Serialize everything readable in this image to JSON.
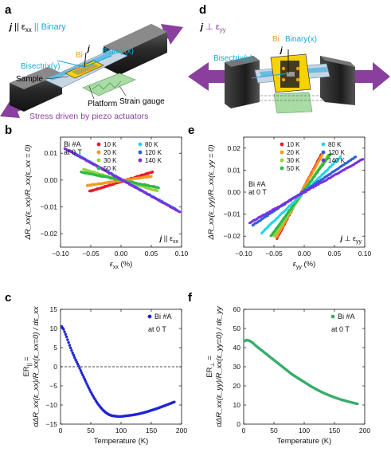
{
  "panel_letters": [
    "a",
    "d",
    "b",
    "e",
    "c",
    "f"
  ],
  "schematic_a": {
    "header_j": "j",
    "header_rest": " || ε",
    "header_sub": "xx",
    "header_tail": " || Binary",
    "bi": "Bi",
    "j": "j",
    "binary_x": "Binary(x)",
    "bisectrix_y": "Bisectrix(y)",
    "sample": "Sample",
    "platform": "Platform",
    "strain_gauge": "Strain gauge",
    "stress": "Stress driven by piezo actuators"
  },
  "schematic_d": {
    "header_j": "j",
    "header_rest": " ⊥ ε",
    "header_sub": "yy",
    "bi": "Bi",
    "binary_x": "Binary(x)",
    "j": "j",
    "bisectrix_y": "Bisectrix(y)"
  },
  "colors": {
    "T10": "#e8192c",
    "T20": "#f39a1e",
    "T30": "#8fd63a",
    "T50": "#2fb74a",
    "T80": "#26d6e3",
    "T120": "#2b5fd9",
    "T140": "#7b2fe0",
    "panel_c": "#1f25d6",
    "panel_f": "#3aad6c",
    "purple": "#8a3f9e",
    "cyan": "#1aa7d8"
  },
  "chart_data": [
    {
      "id": "b",
      "type": "scatter",
      "xlabel_var": "ε",
      "xlabel_sub": "xx",
      "xlabel_unit": " (%)",
      "ylabel": "ΔR_xx(ε_xx)/R_xx(ε_xx = 0)",
      "xlim": [
        -0.1,
        0.1
      ],
      "ylim": [
        -0.025,
        0.016
      ],
      "xticks": [
        "−0.10",
        "−0.05",
        "0.00",
        "0.05",
        "0.10"
      ],
      "yticks": [
        "−0.02",
        "−0.01",
        "0.00",
        "0.01"
      ],
      "sample_label": [
        "Bi #A",
        "at 0 T"
      ],
      "corner_label": {
        "j": "j",
        "rel": " || ε",
        "sub": "xx"
      },
      "legend_cols": [
        [
          "10 K",
          "20 K",
          "30 K",
          "50 K"
        ],
        [
          "80 K",
          "120 K",
          "140 K"
        ]
      ],
      "series": [
        {
          "name": "10 K",
          "color_key": "T10",
          "x": [
            -0.052,
            0.052
          ],
          "y": [
            -0.0042,
            0.003
          ]
        },
        {
          "name": "20 K",
          "color_key": "T20",
          "x": [
            -0.056,
            0.05
          ],
          "y": [
            -0.002,
            0.0014
          ]
        },
        {
          "name": "30 K",
          "color_key": "T30",
          "x": [
            -0.062,
            0.06
          ],
          "y": [
            0.004,
            -0.004
          ]
        },
        {
          "name": "50 K",
          "color_key": "T50",
          "x": [
            -0.066,
            0.062
          ],
          "y": [
            0.003,
            -0.0028
          ]
        },
        {
          "name": "80 K",
          "color_key": "T80",
          "x": [
            -0.085,
            0.09
          ],
          "y": [
            0.011,
            -0.0108
          ]
        },
        {
          "name": "120 K",
          "color_key": "T120",
          "x": [
            -0.088,
            0.093
          ],
          "y": [
            0.0112,
            -0.0113
          ]
        },
        {
          "name": "140 K",
          "color_key": "T140",
          "x": [
            -0.093,
            0.097
          ],
          "y": [
            0.0118,
            -0.0118
          ]
        }
      ]
    },
    {
      "id": "e",
      "type": "scatter",
      "xlabel_var": "ε",
      "xlabel_sub": "yy",
      "xlabel_unit": " (%)",
      "ylabel": "ΔR_xx(ε_yy)/R_xx(ε_yy = 0)",
      "xlim": [
        -0.1,
        0.1
      ],
      "ylim": [
        -0.025,
        0.025
      ],
      "xticks": [
        "−0.10",
        "−0.05",
        "0.00",
        "0.05",
        "0.10"
      ],
      "yticks": [
        "−0.02",
        "−0.01",
        "0.00",
        "0.01",
        "0.02"
      ],
      "sample_label": [
        "Bi #A",
        "at 0 T"
      ],
      "corner_label": {
        "j": "j",
        "rel": " ⊥ ε",
        "sub": "yy"
      },
      "legend_cols": [
        [
          "10 K",
          "20 K",
          "30 K",
          "50 K"
        ],
        [
          "80 K",
          "120 K",
          "140 K"
        ]
      ],
      "series": [
        {
          "name": "10 K",
          "color_key": "T10",
          "x": [
            -0.045,
            0.028
          ],
          "y": [
            -0.021,
            0.017
          ]
        },
        {
          "name": "20 K",
          "color_key": "T20",
          "x": [
            -0.046,
            0.03
          ],
          "y": [
            -0.0205,
            0.017
          ]
        },
        {
          "name": "30 K",
          "color_key": "T30",
          "x": [
            -0.05,
            0.04
          ],
          "y": [
            -0.02,
            0.017
          ]
        },
        {
          "name": "50 K",
          "color_key": "T50",
          "x": [
            -0.055,
            0.044
          ],
          "y": [
            -0.02,
            0.0175
          ]
        },
        {
          "name": "80 K",
          "color_key": "T80",
          "x": [
            -0.07,
            0.06
          ],
          "y": [
            -0.0185,
            0.016
          ]
        },
        {
          "name": "120 K",
          "color_key": "T120",
          "x": [
            -0.085,
            0.085
          ],
          "y": [
            -0.015,
            0.016
          ]
        },
        {
          "name": "140 K",
          "color_key": "T140",
          "x": [
            -0.09,
            0.097
          ],
          "y": [
            -0.014,
            0.015
          ]
        }
      ]
    },
    {
      "id": "c",
      "type": "scatter",
      "xlabel": "Temperature (K)",
      "ylabel_prefix": "ER",
      "ylabel_sub": "||",
      "ylabel_frac": "dΔR_xx(ε_xx)/R_xx(ε_xx=0) / dε_xx",
      "xlim": [
        0,
        200
      ],
      "ylim": [
        -15,
        15
      ],
      "xticks": [
        "0",
        "50",
        "100",
        "150",
        "200"
      ],
      "yticks": [
        "−15",
        "−10",
        "−5",
        "0",
        "5",
        "10",
        "15"
      ],
      "legend": "Bi #A",
      "annotation": "at 0 T",
      "color_key": "panel_c",
      "zero_line": true,
      "points": [
        [
          2,
          10.5
        ],
        [
          5,
          9.8
        ],
        [
          10,
          7.8
        ],
        [
          15,
          5.6
        ],
        [
          20,
          3.6
        ],
        [
          25,
          1.8
        ],
        [
          30,
          0.2
        ],
        [
          35,
          -1.6
        ],
        [
          40,
          -3.3
        ],
        [
          45,
          -5.0
        ],
        [
          50,
          -6.6
        ],
        [
          55,
          -8.0
        ],
        [
          60,
          -9.3
        ],
        [
          65,
          -10.4
        ],
        [
          70,
          -11.3
        ],
        [
          75,
          -12.0
        ],
        [
          80,
          -12.5
        ],
        [
          85,
          -12.8
        ],
        [
          90,
          -12.9
        ],
        [
          95,
          -13.0
        ],
        [
          100,
          -13.0
        ],
        [
          110,
          -12.8
        ],
        [
          120,
          -12.6
        ],
        [
          130,
          -12.3
        ],
        [
          140,
          -11.9
        ],
        [
          150,
          -11.4
        ],
        [
          160,
          -10.9
        ],
        [
          170,
          -10.3
        ],
        [
          180,
          -9.7
        ],
        [
          188,
          -9.2
        ]
      ]
    },
    {
      "id": "f",
      "type": "scatter",
      "xlabel": "Temperature (K)",
      "ylabel_prefix": "ER",
      "ylabel_sub": "⊥",
      "ylabel_frac": "dΔR_xx(ε_yy)/R_xx(ε_yy=0) / dε_yy",
      "xlim": [
        0,
        200
      ],
      "ylim": [
        0,
        60
      ],
      "xticks": [
        "0",
        "50",
        "100",
        "150",
        "200"
      ],
      "yticks": [
        "0",
        "10",
        "20",
        "30",
        "40",
        "50",
        "60"
      ],
      "legend": "Bi #A",
      "annotation": "at 0 T",
      "color_key": "panel_f",
      "zero_line": false,
      "points": [
        [
          2,
          43.5
        ],
        [
          5,
          44.0
        ],
        [
          10,
          43.5
        ],
        [
          15,
          42.5
        ],
        [
          20,
          41.0
        ],
        [
          30,
          38.5
        ],
        [
          40,
          36.0
        ],
        [
          50,
          33.5
        ],
        [
          60,
          31.0
        ],
        [
          70,
          28.5
        ],
        [
          80,
          26.0
        ],
        [
          90,
          24.0
        ],
        [
          100,
          22.0
        ],
        [
          110,
          20.0
        ],
        [
          120,
          18.2
        ],
        [
          130,
          16.6
        ],
        [
          140,
          15.2
        ],
        [
          150,
          14.0
        ],
        [
          160,
          12.9
        ],
        [
          170,
          12.0
        ],
        [
          180,
          11.2
        ],
        [
          188,
          10.6
        ]
      ]
    }
  ]
}
